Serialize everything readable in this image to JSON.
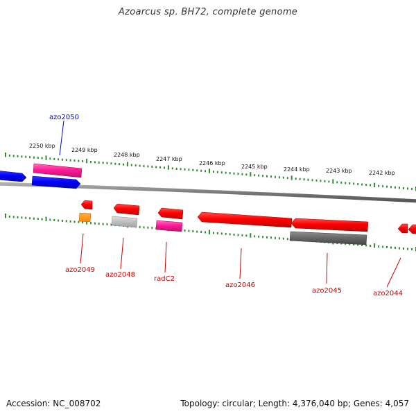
{
  "title": "Azoarcus sp. BH72, complete genome",
  "accession": "Accession: NC_008702",
  "stats": "Topology: circular; Length: 4,376,040 bp; Genes: 4,057",
  "colors": {
    "backbone": "#808080",
    "tick": "#2e8b2e",
    "forward_label": "#0000cc",
    "reverse_label": "#cc0000"
  },
  "kbp_labels": [
    "2250 kbp",
    "2249 kbp",
    "2248 kbp",
    "2247 kbp",
    "2246 kbp",
    "2245 kbp",
    "2244 kbp",
    "2243 kbp",
    "2242 kbp"
  ],
  "genes": [
    {
      "label": "azo2050",
      "strand": "forward",
      "color": "#0000ee"
    },
    {
      "label": "azo2049",
      "strand": "reverse",
      "color": "#ee0000"
    },
    {
      "label": "azo2048",
      "strand": "reverse",
      "color": "#ee0000"
    },
    {
      "label": "radC2",
      "strand": "reverse",
      "color": "#ee0000"
    },
    {
      "label": "azo2046",
      "strand": "reverse",
      "color": "#ee0000"
    },
    {
      "label": "azo2045",
      "strand": "reverse",
      "color": "#ee0000"
    },
    {
      "label": "azo2044",
      "strand": "reverse",
      "color": "#ee0000"
    }
  ]
}
